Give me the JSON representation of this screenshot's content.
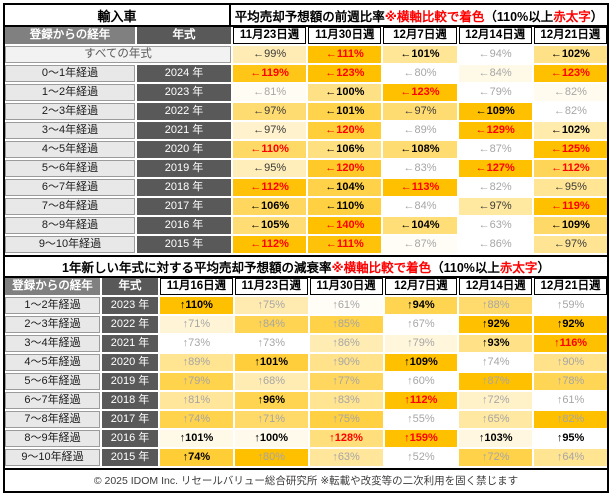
{
  "colors": {
    "heat_min": "#FFFFFF",
    "heat_max": "#FFC000",
    "red_bold_text": "#FF0000",
    "gray_text": "#A6A6A6",
    "header_gray": "#808080",
    "header_dark": "#595959",
    "label_gray": "#E8E8E8"
  },
  "footer": {
    "text": "© 2025 IDOM Inc. リセールバリュー総合研究所 ※転載や改変等の二次利用を固く禁じます"
  },
  "chart_data": [
    {
      "type": "heatmap",
      "corner_label": "輸入車",
      "title": "平均売却予想額の前週比率 ※横軸比較で着色（110%以上 赤太字）",
      "title_parts": [
        {
          "text": "平均売却予想額の前週比率 ",
          "red": false
        },
        {
          "text": "※横軸比較で着色",
          "red": true
        },
        {
          "text": "（110%以上 ",
          "red": false
        },
        {
          "text": "赤太字",
          "red": true
        },
        {
          "text": "）",
          "red": false
        }
      ],
      "row_header_label": "登録からの経年",
      "year_header_label": "年式",
      "columns": [
        "11月23日週",
        "11月30日週",
        "12月7日週",
        "12月14日週",
        "12月21日週"
      ],
      "arrow": "←",
      "unit": "%",
      "colorscale": "row-wise min→white, max→#FFC000",
      "rows": [
        {
          "label": "すべての年式",
          "year": null,
          "values": [
            99,
            111,
            101,
            94,
            102
          ],
          "styles": [
            "n",
            "r",
            "b",
            "g",
            "b"
          ]
        },
        {
          "label": "0〜1年経過",
          "year": "2024 年",
          "values": [
            119,
            123,
            80,
            84,
            123
          ],
          "styles": [
            "r",
            "r",
            "g",
            "g",
            "r"
          ]
        },
        {
          "label": "1〜2年経過",
          "year": "2023 年",
          "values": [
            81,
            100,
            123,
            79,
            82
          ],
          "styles": [
            "g",
            "b",
            "r",
            "g",
            "g"
          ]
        },
        {
          "label": "2〜3年経過",
          "year": "2022 年",
          "values": [
            97,
            101,
            97,
            109,
            82
          ],
          "styles": [
            "n",
            "b",
            "n",
            "b",
            "g"
          ]
        },
        {
          "label": "3〜4年経過",
          "year": "2021 年",
          "values": [
            97,
            120,
            89,
            129,
            102
          ],
          "styles": [
            "n",
            "r",
            "g",
            "r",
            "b"
          ]
        },
        {
          "label": "4〜5年経過",
          "year": "2020 年",
          "values": [
            110,
            106,
            108,
            87,
            125
          ],
          "styles": [
            "r",
            "b",
            "b",
            "g",
            "r"
          ]
        },
        {
          "label": "5〜6年経過",
          "year": "2019 年",
          "values": [
            95,
            120,
            83,
            127,
            112
          ],
          "styles": [
            "n",
            "r",
            "g",
            "r",
            "r"
          ]
        },
        {
          "label": "6〜7年経過",
          "year": "2018 年",
          "values": [
            112,
            104,
            113,
            82,
            95
          ],
          "styles": [
            "r",
            "b",
            "r",
            "g",
            "n"
          ]
        },
        {
          "label": "7〜8年経過",
          "year": "2017 年",
          "values": [
            106,
            110,
            84,
            97,
            119
          ],
          "styles": [
            "b",
            "b",
            "g",
            "n",
            "r"
          ]
        },
        {
          "label": "8〜9年経過",
          "year": "2016 年",
          "values": [
            105,
            140,
            104,
            63,
            109
          ],
          "styles": [
            "b",
            "r",
            "b",
            "g",
            "b"
          ]
        },
        {
          "label": "9〜10年経過",
          "year": "2015 年",
          "values": [
            112,
            111,
            87,
            86,
            97
          ],
          "styles": [
            "r",
            "r",
            "g",
            "g",
            "n"
          ]
        }
      ]
    },
    {
      "type": "heatmap",
      "corner_label": null,
      "title": "1年新しい年式に対する平均売却予想額の減衰率 ※横軸比較で着色（110%以上 赤太字）",
      "title_parts": [
        {
          "text": "1年新しい年式に対する平均売却予想額の減衰率 ",
          "red": false
        },
        {
          "text": "※横軸比較で着色",
          "red": true
        },
        {
          "text": "（110%以上 ",
          "red": false
        },
        {
          "text": "赤太字",
          "red": true
        },
        {
          "text": "）",
          "red": false
        }
      ],
      "row_header_label": "登録からの経年",
      "year_header_label": "年式",
      "columns": [
        "11月16日週",
        "11月23日週",
        "11月30日週",
        "12月7日週",
        "12月14日週",
        "12月21日週"
      ],
      "arrow": "↑",
      "unit": "%",
      "colorscale": "row-wise min→white, max→#FFC000",
      "rows": [
        {
          "label": "1〜2年経過",
          "year": "2023 年",
          "values": [
            110,
            75,
            61,
            94,
            88,
            59
          ],
          "styles": [
            "b",
            "g",
            "g",
            "b",
            "g",
            "g"
          ]
        },
        {
          "label": "2〜3年経過",
          "year": "2022 年",
          "values": [
            71,
            84,
            85,
            67,
            92,
            92
          ],
          "styles": [
            "g",
            "g",
            "g",
            "g",
            "b",
            "b"
          ]
        },
        {
          "label": "3〜4年経過",
          "year": "2021 年",
          "values": [
            73,
            73,
            86,
            79,
            93,
            116
          ],
          "styles": [
            "g",
            "g",
            "g",
            "g",
            "b",
            "r"
          ]
        },
        {
          "label": "4〜5年経過",
          "year": "2020 年",
          "values": [
            89,
            101,
            90,
            109,
            74,
            90
          ],
          "styles": [
            "g",
            "b",
            "g",
            "b",
            "g",
            "g"
          ]
        },
        {
          "label": "5〜6年経過",
          "year": "2019 年",
          "values": [
            79,
            68,
            77,
            60,
            87,
            78
          ],
          "styles": [
            "g",
            "g",
            "g",
            "g",
            "g",
            "g"
          ]
        },
        {
          "label": "6〜7年経過",
          "year": "2018 年",
          "values": [
            81,
            96,
            83,
            112,
            72,
            61
          ],
          "styles": [
            "g",
            "b",
            "g",
            "r",
            "g",
            "g"
          ]
        },
        {
          "label": "7〜8年経過",
          "year": "2017 年",
          "values": [
            74,
            71,
            75,
            55,
            65,
            82
          ],
          "styles": [
            "g",
            "g",
            "g",
            "g",
            "g",
            "g"
          ]
        },
        {
          "label": "8〜9年経過",
          "year": "2016 年",
          "values": [
            101,
            100,
            128,
            159,
            103,
            95
          ],
          "styles": [
            "b",
            "b",
            "r",
            "r",
            "b",
            "b"
          ]
        },
        {
          "label": "9〜10年経過",
          "year": "2015 年",
          "values": [
            74,
            80,
            63,
            52,
            72,
            64
          ],
          "styles": [
            "b",
            "g",
            "g",
            "g",
            "g",
            "g"
          ]
        }
      ]
    }
  ]
}
